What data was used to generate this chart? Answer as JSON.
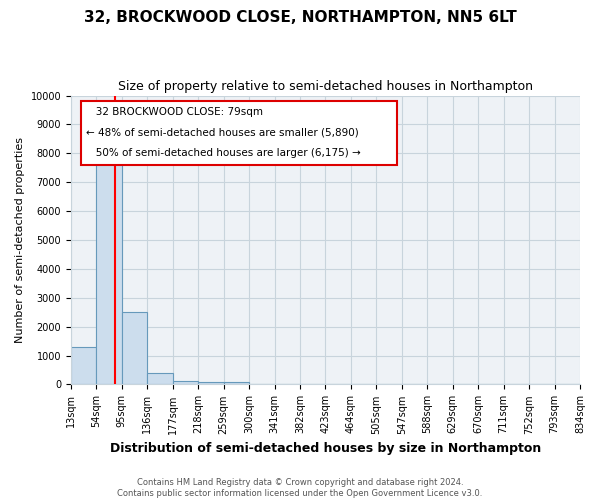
{
  "title": "32, BROCKWOOD CLOSE, NORTHAMPTON, NN5 6LT",
  "subtitle": "Size of property relative to semi-detached houses in Northampton",
  "xlabel": "Distribution of semi-detached houses by size in Northampton",
  "ylabel": "Number of semi-detached properties",
  "footer": "Contains HM Land Registry data © Crown copyright and database right 2024.\nContains public sector information licensed under the Open Government Licence v3.0.",
  "bins": [
    "13sqm",
    "54sqm",
    "95sqm",
    "136sqm",
    "177sqm",
    "218sqm",
    "259sqm",
    "300sqm",
    "341sqm",
    "382sqm",
    "423sqm",
    "464sqm",
    "505sqm",
    "547sqm",
    "588sqm",
    "629sqm",
    "670sqm",
    "711sqm",
    "752sqm",
    "793sqm",
    "834sqm"
  ],
  "bar_heights": [
    1300,
    8000,
    2500,
    380,
    120,
    100,
    80,
    0,
    0,
    0,
    0,
    0,
    0,
    0,
    0,
    0,
    0,
    0,
    0,
    0
  ],
  "bar_color": "#ccdded",
  "bar_edge_color": "#6699bb",
  "red_line_x": 1.75,
  "property_label": "32 BROCKWOOD CLOSE: 79sqm",
  "smaller_pct": "48% of semi-detached houses are smaller (5,890)",
  "larger_pct": "50% of semi-detached houses are larger (6,175)",
  "annotation_box_color": "#dd0000",
  "ylim": [
    0,
    10000
  ],
  "yticks": [
    0,
    1000,
    2000,
    3000,
    4000,
    5000,
    6000,
    7000,
    8000,
    9000,
    10000
  ],
  "grid_color": "#c8d4dc",
  "background_color": "#eef2f6",
  "title_fontsize": 11,
  "subtitle_fontsize": 9,
  "xlabel_fontsize": 9,
  "ylabel_fontsize": 8,
  "footer_fontsize": 6,
  "tick_fontsize": 7,
  "annot_fontsize": 7.5
}
